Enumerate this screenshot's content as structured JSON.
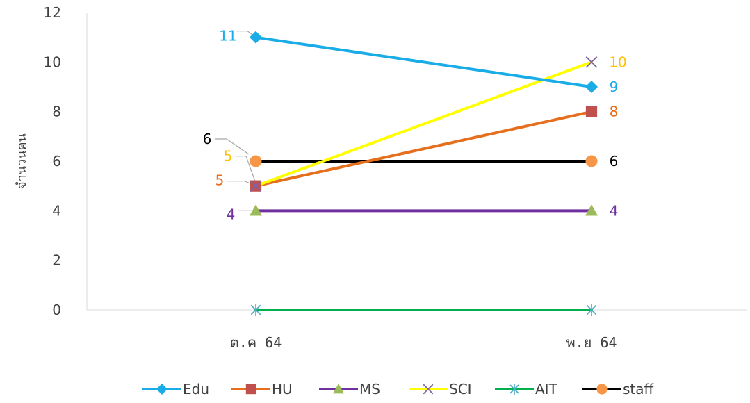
{
  "chart_data": {
    "type": "line",
    "categories": [
      "ต.ค 64",
      "พ.ย 64"
    ],
    "ylabel": "จำนวนคน",
    "ylim": [
      0,
      12
    ],
    "yticks": [
      0,
      2,
      4,
      6,
      8,
      10,
      12
    ],
    "grid": false,
    "legend_position": "bottom",
    "series": [
      {
        "name": "Edu",
        "values": [
          11,
          9
        ],
        "color": "#1AACE6",
        "marker": "diamond",
        "label_color": "#1AACE6"
      },
      {
        "name": "HU",
        "values": [
          5,
          8
        ],
        "color": "#E56F1C",
        "marker": "square",
        "marker_color": "#C0504D",
        "label_color": "#E56F1C"
      },
      {
        "name": "MS",
        "values": [
          4,
          4
        ],
        "color": "#7030A0",
        "marker": "triangle",
        "marker_color": "#9BBB59",
        "label_color": "#7030A0"
      },
      {
        "name": "SCI",
        "values": [
          5,
          10
        ],
        "color": "#FFFF00",
        "marker": "x",
        "marker_color": "#8064A2",
        "label_color": "#FFC000"
      },
      {
        "name": "AIT",
        "values": [
          0,
          0
        ],
        "color": "#00B050",
        "marker": "star",
        "marker_color": "#4BACC6",
        "label_color": "#00B050"
      },
      {
        "name": "staff",
        "values": [
          6,
          6
        ],
        "color": "#000000",
        "marker": "circle",
        "marker_color": "#F79646",
        "label_color": "#000000"
      }
    ],
    "data_labels": [
      {
        "series": "Edu",
        "point": 0,
        "text": "11"
      },
      {
        "series": "Edu",
        "point": 1,
        "text": "9"
      },
      {
        "series": "HU",
        "point": 0,
        "text": "5"
      },
      {
        "series": "HU",
        "point": 1,
        "text": "8"
      },
      {
        "series": "MS",
        "point": 0,
        "text": "4"
      },
      {
        "series": "MS",
        "point": 1,
        "text": "4"
      },
      {
        "series": "SCI",
        "point": 0,
        "text": "5"
      },
      {
        "series": "SCI",
        "point": 1,
        "text": "10"
      },
      {
        "series": "staff",
        "point": 0,
        "text": "6"
      },
      {
        "series": "staff",
        "point": 1,
        "text": "6"
      }
    ]
  }
}
